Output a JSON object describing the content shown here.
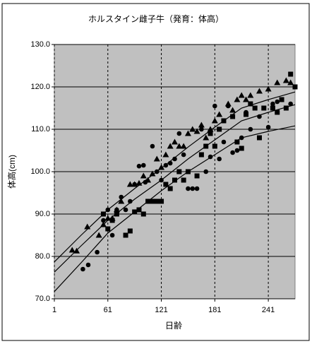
{
  "chart_data": {
    "type": "scatter",
    "title": "ホルスタイン雌子牛（発育：体高）",
    "x_label": "日齢",
    "y_label": "体高(cm)",
    "xlim": [
      1,
      271
    ],
    "ylim": [
      70,
      130
    ],
    "xticks": [
      1,
      61,
      121,
      181,
      241
    ],
    "yticks": [
      {
        "value": 70,
        "label": "70.0"
      },
      {
        "value": 80,
        "label": "80.0"
      },
      {
        "value": 90,
        "label": "90.0"
      },
      {
        "value": 100,
        "label": "100.0"
      },
      {
        "value": 110,
        "label": "110.0"
      },
      {
        "value": 120,
        "label": "120.0"
      },
      {
        "value": 130,
        "label": "130.0"
      }
    ],
    "grid": true,
    "plot_background": "#c0c0c0",
    "series": [
      {
        "marker": "triangle",
        "color": "#000000",
        "x": [
          21,
          26,
          38,
          51,
          56,
          61,
          66,
          71,
          76,
          86,
          91,
          96,
          101,
          106,
          111,
          116,
          121,
          126,
          131,
          136,
          141,
          146,
          151,
          156,
          161,
          166,
          171,
          176,
          181,
          186,
          196,
          201,
          206,
          211,
          216,
          221,
          231,
          241,
          251,
          261,
          266
        ],
        "values": [
          81.5,
          81.3,
          87,
          85,
          87.5,
          89,
          89,
          91,
          93,
          97,
          97,
          97.3,
          99,
          98,
          99.5,
          103,
          101,
          104,
          106,
          107,
          106,
          106,
          109,
          110,
          109.5,
          111,
          108,
          110,
          112,
          113.5,
          116,
          114.5,
          117,
          118,
          117,
          118,
          119,
          119.5,
          121,
          121.5,
          121
        ]
      },
      {
        "marker": "circle",
        "color": "#000000",
        "x": [
          33,
          39,
          49,
          56,
          61,
          66,
          71,
          76,
          81,
          86,
          91,
          96,
          101,
          103,
          111,
          116,
          121,
          126,
          131,
          136,
          141,
          146,
          151,
          156,
          161,
          166,
          171,
          176,
          181,
          186,
          191,
          196,
          201,
          206,
          211,
          216,
          221,
          226,
          231,
          241,
          246,
          251,
          266
        ],
        "values": [
          77,
          78,
          81,
          88.5,
          91,
          85,
          91,
          94,
          91,
          93,
          97,
          101.3,
          101.5,
          97.5,
          106,
          100,
          98,
          101.5,
          102,
          103,
          109,
          104,
          96,
          96,
          96,
          110,
          100,
          103.5,
          115.5,
          103,
          107,
          115.5,
          104.5,
          105,
          108,
          114,
          110,
          115,
          113,
          110.5,
          116,
          116.5,
          116
        ]
      },
      {
        "marker": "square",
        "color": "#000000",
        "x": [
          56,
          61,
          66,
          71,
          81,
          86,
          91,
          96,
          101,
          106,
          111,
          116,
          121,
          126,
          131,
          136,
          141,
          146,
          151,
          161,
          166,
          171,
          176,
          181,
          186,
          191,
          201,
          206,
          211,
          216,
          221,
          226,
          231,
          236,
          246,
          251,
          256,
          261,
          266,
          271
        ],
        "values": [
          90,
          86.5,
          88.5,
          90,
          85,
          86,
          90.5,
          91,
          90,
          93,
          93,
          93,
          93,
          97,
          96,
          98,
          100,
          98,
          100,
          99,
          104,
          106,
          109,
          106,
          110,
          112,
          113,
          107,
          105.5,
          113.5,
          116,
          115,
          108,
          115,
          115,
          114,
          117,
          115,
          123,
          120
        ]
      },
      {
        "line": true,
        "color": "#000000",
        "x": [
          1,
          31,
          61,
          91,
          121,
          151,
          181,
          211,
          241,
          271
        ],
        "values": [
          78.7,
          85,
          91,
          96,
          100.8,
          105.8,
          110.5,
          115,
          117,
          118.8
        ]
      },
      {
        "line": true,
        "color": "#000000",
        "x": [
          1,
          31,
          61,
          91,
          121,
          151,
          181,
          211,
          241,
          271
        ],
        "values": [
          76.3,
          82.5,
          88.5,
          93.5,
          98,
          103,
          107.5,
          112,
          114,
          115.8
        ]
      },
      {
        "line": true,
        "color": "#000000",
        "x": [
          1,
          31,
          61,
          91,
          121,
          151,
          181,
          211,
          241,
          271
        ],
        "values": [
          71.7,
          78.5,
          85.5,
          90.5,
          95.5,
          100,
          104,
          108,
          109.5,
          110.8
        ]
      }
    ]
  }
}
